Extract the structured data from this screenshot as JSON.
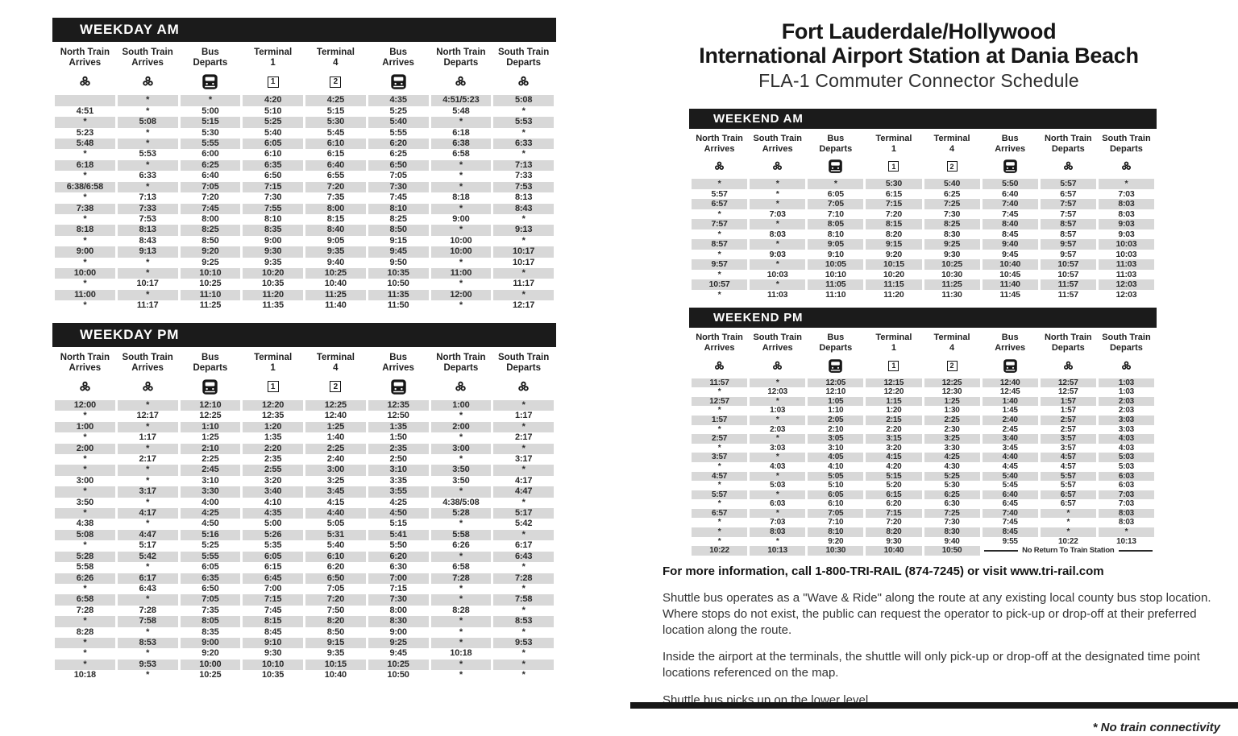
{
  "title": {
    "line1": "Fort Lauderdale/Hollywood",
    "line2": "International Airport Station at Dania Beach",
    "subtitle": "FLA-1 Commuter Connector Schedule"
  },
  "columns": {
    "labels": [
      [
        "North Train",
        "Arrives"
      ],
      [
        "South Train",
        "Arrives"
      ],
      [
        "Bus",
        "Departs"
      ],
      [
        "Terminal",
        "1"
      ],
      [
        "Terminal",
        "4"
      ],
      [
        "Bus",
        "Arrives"
      ],
      [
        "North Train",
        "Departs"
      ],
      [
        "South Train",
        "Departs"
      ]
    ],
    "icons": [
      "tri-rail-logo",
      "tri-rail-logo",
      "bus",
      "terminal-badge-1",
      "terminal-badge-2",
      "bus",
      "tri-rail-logo",
      "tri-rail-logo"
    ]
  },
  "tables": [
    {
      "id": "weekday-am",
      "title": "WEEKDAY AM",
      "rows": [
        [
          "",
          "*",
          "*",
          "4:20",
          "4:25",
          "4:35",
          "4:51/5:23",
          "5:08"
        ],
        [
          "4:51",
          "*",
          "5:00",
          "5:10",
          "5:15",
          "5:25",
          "5:48",
          "*"
        ],
        [
          "*",
          "5:08",
          "5:15",
          "5:25",
          "5:30",
          "5:40",
          "*",
          "5:53"
        ],
        [
          "5:23",
          "*",
          "5:30",
          "5:40",
          "5:45",
          "5:55",
          "6:18",
          "*"
        ],
        [
          "5:48",
          "*",
          "5:55",
          "6:05",
          "6:10",
          "6:20",
          "6:38",
          "6:33"
        ],
        [
          "*",
          "5:53",
          "6:00",
          "6:10",
          "6:15",
          "6:25",
          "6:58",
          "*"
        ],
        [
          "6:18",
          "*",
          "6:25",
          "6:35",
          "6:40",
          "6:50",
          "*",
          "7:13"
        ],
        [
          "*",
          "6:33",
          "6:40",
          "6:50",
          "6:55",
          "7:05",
          "*",
          "7:33"
        ],
        [
          "6:38/6:58",
          "*",
          "7:05",
          "7:15",
          "7:20",
          "7:30",
          "*",
          "7:53"
        ],
        [
          "*",
          "7:13",
          "7:20",
          "7:30",
          "7:35",
          "7:45",
          "8:18",
          "8:13"
        ],
        [
          "7:38",
          "7:33",
          "7:45",
          "7:55",
          "8:00",
          "8:10",
          "*",
          "8:43"
        ],
        [
          "*",
          "7:53",
          "8:00",
          "8:10",
          "8:15",
          "8:25",
          "9:00",
          "*"
        ],
        [
          "8:18",
          "8:13",
          "8:25",
          "8:35",
          "8:40",
          "8:50",
          "*",
          "9:13"
        ],
        [
          "*",
          "8:43",
          "8:50",
          "9:00",
          "9:05",
          "9:15",
          "10:00",
          "*"
        ],
        [
          "9:00",
          "9:13",
          "9:20",
          "9:30",
          "9:35",
          "9:45",
          "10:00",
          "10:17"
        ],
        [
          "*",
          "*",
          "9:25",
          "9:35",
          "9:40",
          "9:50",
          "*",
          "10:17"
        ],
        [
          "10:00",
          "*",
          "10:10",
          "10:20",
          "10:25",
          "10:35",
          "11:00",
          "*"
        ],
        [
          "*",
          "10:17",
          "10:25",
          "10:35",
          "10:40",
          "10:50",
          "*",
          "11:17"
        ],
        [
          "11:00",
          "*",
          "11:10",
          "11:20",
          "11:25",
          "11:35",
          "12:00",
          "*"
        ],
        [
          "*",
          "11:17",
          "11:25",
          "11:35",
          "11:40",
          "11:50",
          "*",
          "12:17"
        ]
      ]
    },
    {
      "id": "weekday-pm",
      "title": "WEEKDAY PM",
      "rows": [
        [
          "12:00",
          "*",
          "12:10",
          "12:20",
          "12:25",
          "12:35",
          "1:00",
          "*"
        ],
        [
          "*",
          "12:17",
          "12:25",
          "12:35",
          "12:40",
          "12:50",
          "*",
          "1:17"
        ],
        [
          "1:00",
          "*",
          "1:10",
          "1:20",
          "1:25",
          "1:35",
          "2:00",
          "*"
        ],
        [
          "*",
          "1:17",
          "1:25",
          "1:35",
          "1:40",
          "1:50",
          "*",
          "2:17"
        ],
        [
          "2:00",
          "*",
          "2:10",
          "2:20",
          "2:25",
          "2:35",
          "3:00",
          "*"
        ],
        [
          "*",
          "2:17",
          "2:25",
          "2:35",
          "2:40",
          "2:50",
          "*",
          "3:17"
        ],
        [
          "*",
          "*",
          "2:45",
          "2:55",
          "3:00",
          "3:10",
          "3:50",
          "*"
        ],
        [
          "3:00",
          "*",
          "3:10",
          "3:20",
          "3:25",
          "3:35",
          "3:50",
          "4:17"
        ],
        [
          "*",
          "3:17",
          "3:30",
          "3:40",
          "3:45",
          "3:55",
          "*",
          "4:47"
        ],
        [
          "3:50",
          "*",
          "4:00",
          "4:10",
          "4:15",
          "4:25",
          "4:38/5:08",
          "*"
        ],
        [
          "*",
          "4:17",
          "4:25",
          "4:35",
          "4:40",
          "4:50",
          "5:28",
          "5:17"
        ],
        [
          "4:38",
          "*",
          "4:50",
          "5:00",
          "5:05",
          "5:15",
          "*",
          "5:42"
        ],
        [
          "5:08",
          "4:47",
          "5:16",
          "5:26",
          "5:31",
          "5:41",
          "5:58",
          "*"
        ],
        [
          "*",
          "5:17",
          "5:25",
          "5:35",
          "5:40",
          "5:50",
          "6:26",
          "6:17"
        ],
        [
          "5:28",
          "5:42",
          "5:55",
          "6:05",
          "6:10",
          "6:20",
          "*",
          "6:43"
        ],
        [
          "5:58",
          "*",
          "6:05",
          "6:15",
          "6:20",
          "6:30",
          "6:58",
          "*"
        ],
        [
          "6:26",
          "6:17",
          "6:35",
          "6:45",
          "6:50",
          "7:00",
          "7:28",
          "7:28"
        ],
        [
          "*",
          "6:43",
          "6:50",
          "7:00",
          "7:05",
          "7:15",
          "*",
          "*"
        ],
        [
          "6:58",
          "*",
          "7:05",
          "7:15",
          "7:20",
          "7:30",
          "*",
          "7:58"
        ],
        [
          "7:28",
          "7:28",
          "7:35",
          "7:45",
          "7:50",
          "8:00",
          "8:28",
          "*"
        ],
        [
          "*",
          "7:58",
          "8:05",
          "8:15",
          "8:20",
          "8:30",
          "*",
          "8:53"
        ],
        [
          "8:28",
          "*",
          "8:35",
          "8:45",
          "8:50",
          "9:00",
          "*",
          "*"
        ],
        [
          "*",
          "8:53",
          "9:00",
          "9:10",
          "9:15",
          "9:25",
          "*",
          "9:53"
        ],
        [
          "*",
          "*",
          "9:20",
          "9:30",
          "9:35",
          "9:45",
          "10:18",
          "*"
        ],
        [
          "*",
          "9:53",
          "10:00",
          "10:10",
          "10:15",
          "10:25",
          "*",
          "*"
        ],
        [
          "10:18",
          "*",
          "10:25",
          "10:35",
          "10:40",
          "10:50",
          "*",
          "*"
        ]
      ]
    },
    {
      "id": "weekend-am",
      "title": "WEEKEND AM",
      "rows": [
        [
          "*",
          "*",
          "*",
          "5:30",
          "5:40",
          "5:50",
          "5:57",
          "*"
        ],
        [
          "5:57",
          "*",
          "6:05",
          "6:15",
          "6:25",
          "6:40",
          "6:57",
          "7:03"
        ],
        [
          "6:57",
          "*",
          "7:05",
          "7:15",
          "7:25",
          "7:40",
          "7:57",
          "8:03"
        ],
        [
          "*",
          "7:03",
          "7:10",
          "7:20",
          "7:30",
          "7:45",
          "7:57",
          "8:03"
        ],
        [
          "7:57",
          "*",
          "8:05",
          "8:15",
          "8:25",
          "8:40",
          "8:57",
          "9:03"
        ],
        [
          "*",
          "8:03",
          "8:10",
          "8:20",
          "8:30",
          "8:45",
          "8:57",
          "9:03"
        ],
        [
          "8:57",
          "*",
          "9:05",
          "9:15",
          "9:25",
          "9:40",
          "9:57",
          "10:03"
        ],
        [
          "*",
          "9:03",
          "9:10",
          "9:20",
          "9:30",
          "9:45",
          "9:57",
          "10:03"
        ],
        [
          "9:57",
          "*",
          "10:05",
          "10:15",
          "10:25",
          "10:40",
          "10:57",
          "11:03"
        ],
        [
          "*",
          "10:03",
          "10:10",
          "10:20",
          "10:30",
          "10:45",
          "10:57",
          "11:03"
        ],
        [
          "10:57",
          "*",
          "11:05",
          "11:15",
          "11:25",
          "11:40",
          "11:57",
          "12:03"
        ],
        [
          "*",
          "11:03",
          "11:10",
          "11:20",
          "11:30",
          "11:45",
          "11:57",
          "12:03"
        ]
      ]
    },
    {
      "id": "weekend-pm",
      "title": "WEEKEND PM",
      "rows": [
        [
          "11:57",
          "*",
          "12:05",
          "12:15",
          "12:25",
          "12:40",
          "12:57",
          "1:03"
        ],
        [
          "*",
          "12:03",
          "12:10",
          "12:20",
          "12:30",
          "12:45",
          "12:57",
          "1:03"
        ],
        [
          "12:57",
          "*",
          "1:05",
          "1:15",
          "1:25",
          "1:40",
          "1:57",
          "2:03"
        ],
        [
          "*",
          "1:03",
          "1:10",
          "1:20",
          "1:30",
          "1:45",
          "1:57",
          "2:03"
        ],
        [
          "1:57",
          "*",
          "2:05",
          "2:15",
          "2:25",
          "2:40",
          "2:57",
          "3:03"
        ],
        [
          "*",
          "2:03",
          "2:10",
          "2:20",
          "2:30",
          "2:45",
          "2:57",
          "3:03"
        ],
        [
          "2:57",
          "*",
          "3:05",
          "3:15",
          "3:25",
          "3:40",
          "3:57",
          "4:03"
        ],
        [
          "*",
          "3:03",
          "3:10",
          "3:20",
          "3:30",
          "3:45",
          "3:57",
          "4:03"
        ],
        [
          "3:57",
          "*",
          "4:05",
          "4:15",
          "4:25",
          "4:40",
          "4:57",
          "5:03"
        ],
        [
          "*",
          "4:03",
          "4:10",
          "4:20",
          "4:30",
          "4:45",
          "4:57",
          "5:03"
        ],
        [
          "4:57",
          "*",
          "5:05",
          "5:15",
          "5:25",
          "5:40",
          "5:57",
          "6:03"
        ],
        [
          "*",
          "5:03",
          "5:10",
          "5:20",
          "5:30",
          "5:45",
          "5:57",
          "6:03"
        ],
        [
          "5:57",
          "*",
          "6:05",
          "6:15",
          "6:25",
          "6:40",
          "6:57",
          "7:03"
        ],
        [
          "*",
          "6:03",
          "6:10",
          "6:20",
          "6:30",
          "6:45",
          "6:57",
          "7:03"
        ],
        [
          "6:57",
          "*",
          "7:05",
          "7:15",
          "7:25",
          "7:40",
          "*",
          "8:03"
        ],
        [
          "*",
          "7:03",
          "7:10",
          "7:20",
          "7:30",
          "7:45",
          "*",
          "8:03"
        ],
        [
          "*",
          "8:03",
          "8:10",
          "8:20",
          "8:30",
          "8:45",
          "*",
          "*"
        ],
        [
          "*",
          "*",
          "9:20",
          "9:30",
          "9:40",
          "9:55",
          "10:22",
          "10:13"
        ],
        {
          "cells": [
            "10:22",
            "10:13",
            "10:30",
            "10:40",
            "10:50"
          ],
          "note": "No Return To Train Station"
        }
      ]
    }
  ],
  "footer": {
    "info_line": "For more information, call 1-800-TRI-RAIL (874-7245) or visit www.tri-rail.com",
    "para1": "Shuttle bus operates as a \"Wave & Ride\" along the route at any existing local county bus stop location. Where stops do not exist, the public can request the operator to pick-up or drop-off at their preferred location along the route.",
    "para2": "Inside the airport at the terminals, the shuttle will only pick-up or drop-off at the designated time point locations referenced on the map.",
    "para3": "Shuttle bus picks up on the lower level.",
    "footnote": "* No train connectivity"
  },
  "colors": {
    "header_bar": "#1b1b1b",
    "row_shade": "#d8d8d8",
    "text": "#262626"
  }
}
